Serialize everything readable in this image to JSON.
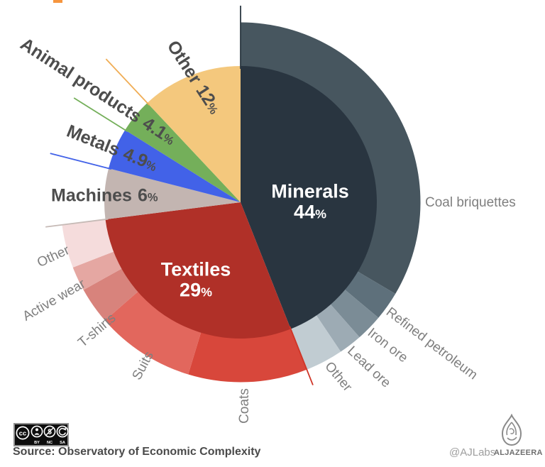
{
  "strings": {
    "percent_sign": "%"
  },
  "accent_color": "#f6953e",
  "chart_data": {
    "type": "pie",
    "units": "% of exports",
    "legend_position": "labels-on-chart",
    "categories": [
      {
        "label": "Minerals",
        "pct": 44,
        "pct_display": "44",
        "color": "#293540",
        "subs": [
          {
            "label": "Coal briquettes",
            "pct": 33.5,
            "color": "#47565f"
          },
          {
            "label": "Refined petroleum",
            "pct": 2.6,
            "color": "#5e707b"
          },
          {
            "label": "Iron ore",
            "pct": 2.4,
            "color": "#7b8c96"
          },
          {
            "label": "Lead ore",
            "pct": 2.1,
            "color": "#9dabb4"
          },
          {
            "label": "Other",
            "pct": 3.4,
            "color": "#c1ccd2"
          }
        ]
      },
      {
        "label": "Textiles",
        "pct": 29,
        "pct_display": "29",
        "color": "#b03028",
        "subs": [
          {
            "label": "Coats",
            "pct": 10.7,
            "color": "#d8473b"
          },
          {
            "label": "Suits",
            "pct": 8.9,
            "color": "#e2675d"
          },
          {
            "label": "T-shirts",
            "pct": 3.3,
            "color": "#d8837c"
          },
          {
            "label": "Active wear",
            "pct": 2.2,
            "color": "#e5a7a2"
          },
          {
            "label": "Other",
            "pct": 3.9,
            "color": "#f5dcdc"
          }
        ]
      },
      {
        "label": "Machines",
        "pct": 6,
        "pct_display": "6",
        "color": "#c3b5b1"
      },
      {
        "label": "Metals",
        "pct": 4.9,
        "pct_display": "4.9",
        "color": "#4262e8"
      },
      {
        "label": "Animal products",
        "pct": 4.1,
        "pct_display": "4.1",
        "color": "#74af5a"
      },
      {
        "label": "Other",
        "pct": 12,
        "pct_display": "12",
        "color": "#f4c87d"
      }
    ],
    "edge_lines": [
      {
        "category_index": 0,
        "color": "#2b3740"
      },
      {
        "category_index": 1,
        "color": "#cf3527"
      },
      {
        "category_index": 2,
        "color": "#c6bab6"
      },
      {
        "category_index": 3,
        "color": "#4262e8"
      },
      {
        "category_index": 4,
        "color": "#74af5a"
      },
      {
        "category_index": 5,
        "color": "#f0ad55"
      }
    ]
  },
  "footer": {
    "source": "Source: Observatory of Economic Complexity",
    "credit": "@AJLabs",
    "brand": "ALJAZEERA",
    "cc_mark": "cc",
    "license_labels": [
      "BY",
      "NC",
      "SA"
    ]
  }
}
